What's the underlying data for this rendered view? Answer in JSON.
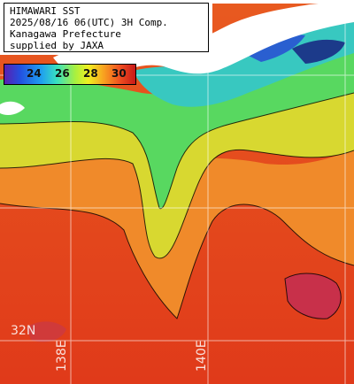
{
  "title_lines": [
    "HIMAWARI SST",
    "2025/08/16 06(UTC) 3H Comp.",
    "Kanagawa Prefecture",
    "supplied by JAXA"
  ],
  "legend": {
    "ticks": [
      "24",
      "26",
      "28",
      "30"
    ]
  },
  "grid_labels": {
    "lat_32": "32N",
    "lon_138": "138E",
    "lon_140": "140E"
  },
  "colors": {
    "land": "#ffffff",
    "warm_sea": "#e8461f",
    "hot_sea": "#c8304a",
    "mid_sea": "#f0a030",
    "cool_sea": "#30d0b0",
    "cold_sea": "#2a5fd0"
  }
}
